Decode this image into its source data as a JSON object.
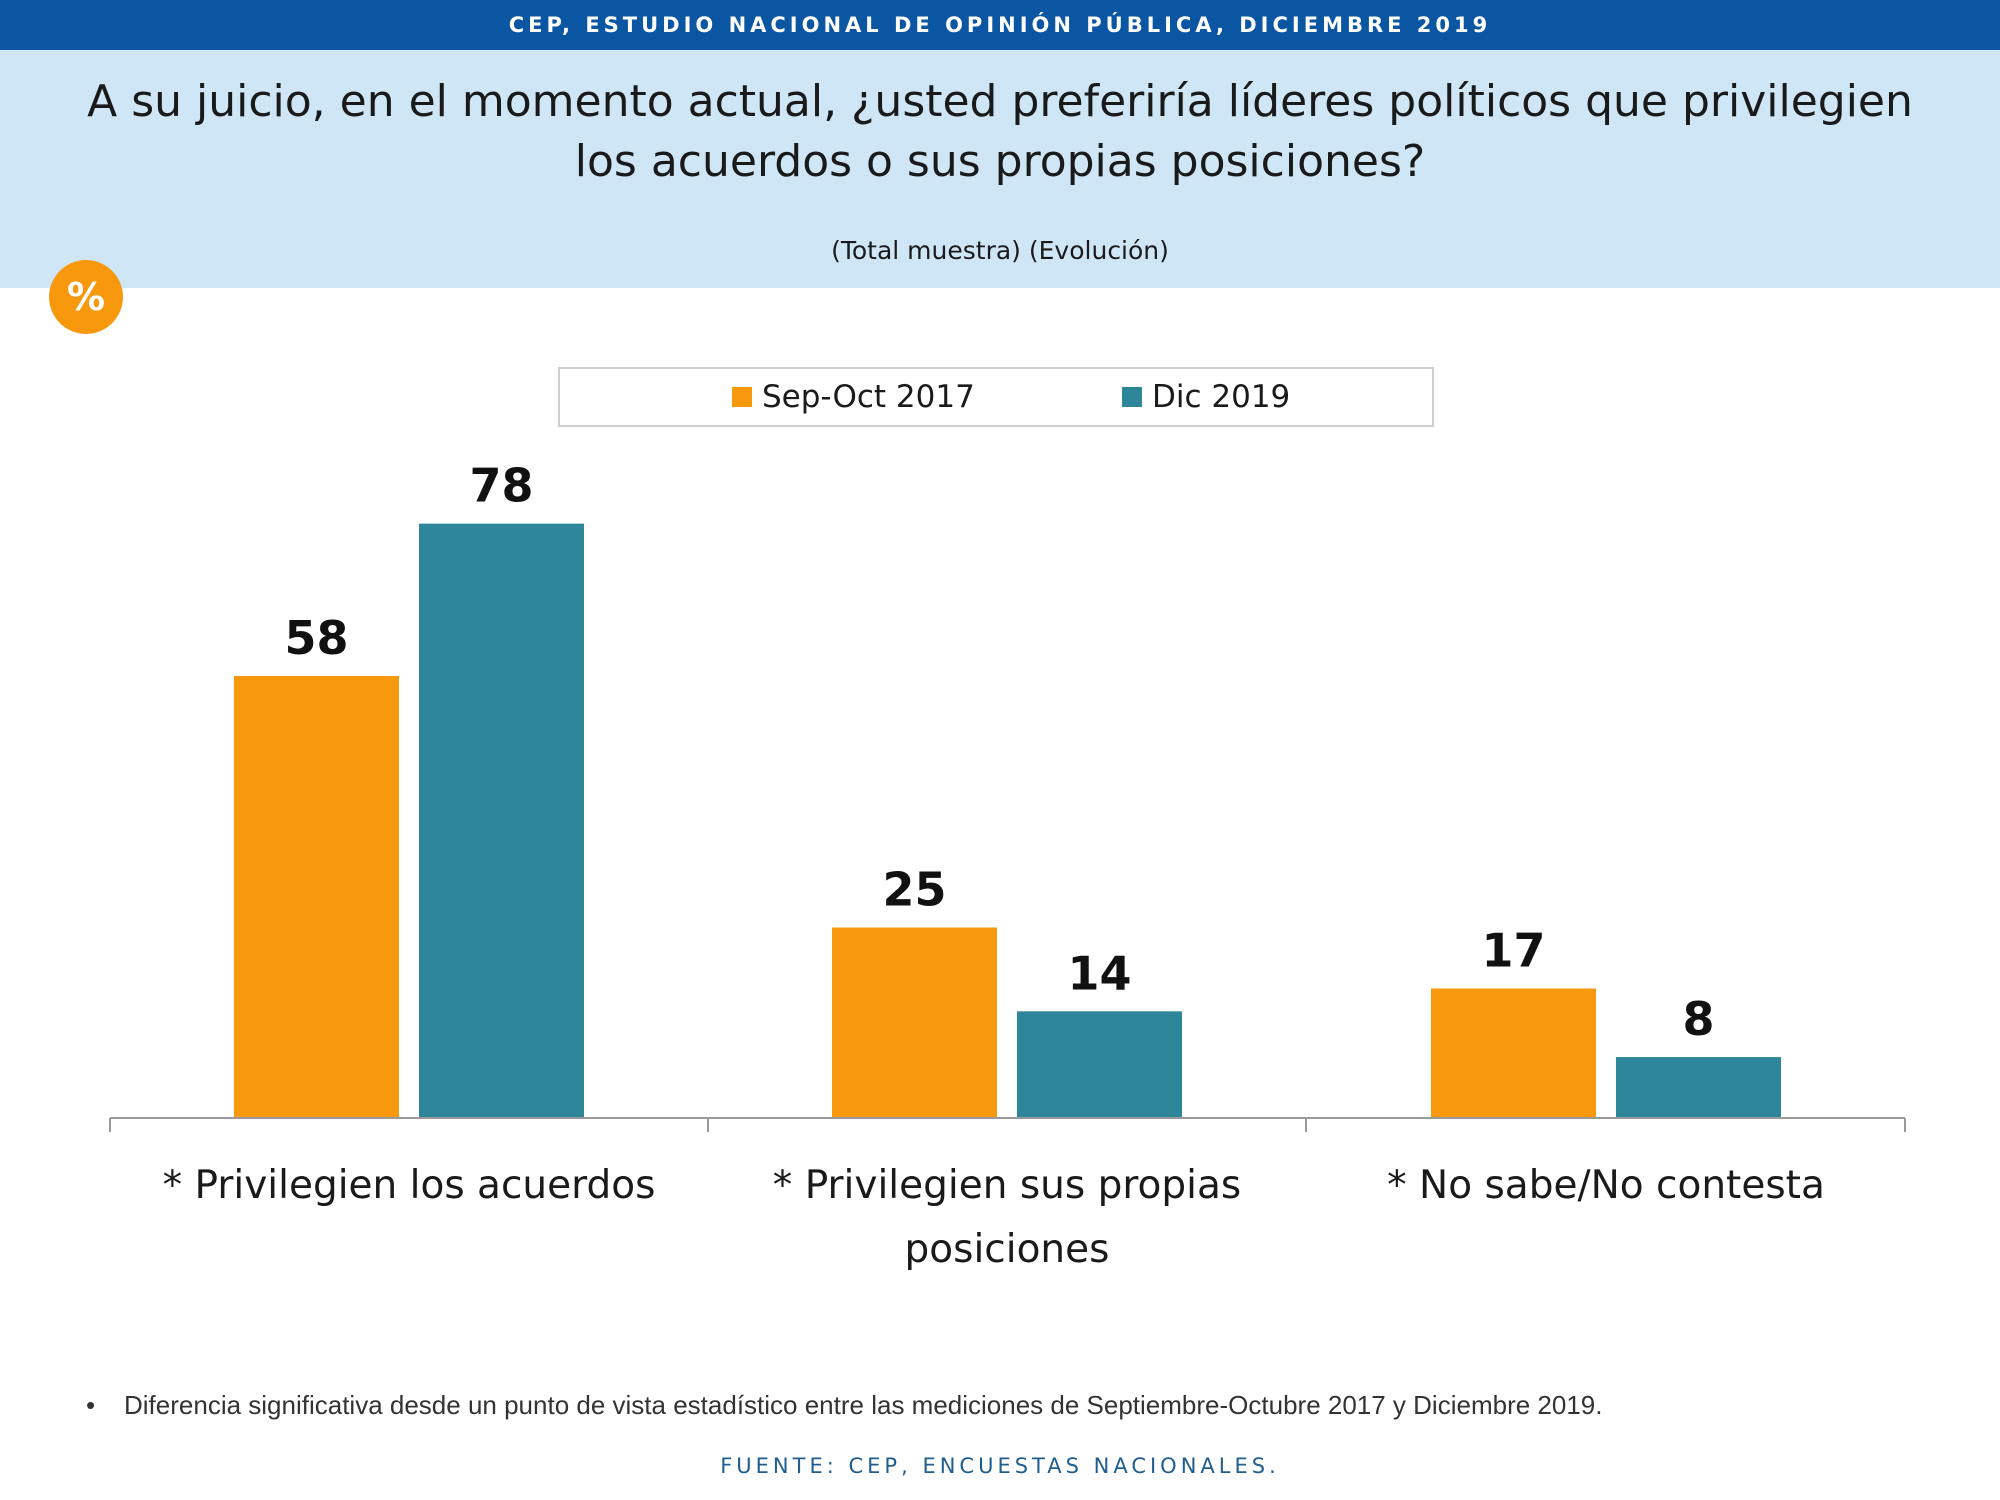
{
  "header": {
    "top_banner": "CEP, ESTUDIO NACIONAL DE OPINIÓN PÚBLICA, DICIEMBRE 2019",
    "question": "A su juicio, en el momento actual, ¿usted preferiría líderes políticos que privilegien los acuerdos o sus propias posiciones?",
    "subtitle": "(Total muestra) (Evolución)",
    "badge": "%"
  },
  "colors": {
    "banner": "#0a56a3",
    "band": "#cfe6f7",
    "series_2017": "#f7980d",
    "series_2019": "#2e869b"
  },
  "chart_data": {
    "type": "bar",
    "categories": [
      [
        "* Privilegien los acuerdos"
      ],
      [
        "* Privilegien sus propias",
        "posiciones"
      ],
      [
        "* No sabe/No contesta"
      ]
    ],
    "series": [
      {
        "name": "Sep-Oct 2017",
        "values": [
          58,
          25,
          17
        ],
        "color": "#f7980d"
      },
      {
        "name": "Dic 2019",
        "values": [
          78,
          14,
          8
        ],
        "color": "#2e869b"
      }
    ],
    "ylim": [
      0,
      80
    ],
    "grid": false,
    "legend": "top-center",
    "data_labels": true
  },
  "footer": {
    "bullet": "•",
    "footnote": "Diferencia significativa desde un punto de vista estadístico entre las mediciones de Septiembre-Octubre 2017 y Diciembre 2019.",
    "source": "FUENTE: CEP, ENCUESTAS NACIONALES."
  }
}
